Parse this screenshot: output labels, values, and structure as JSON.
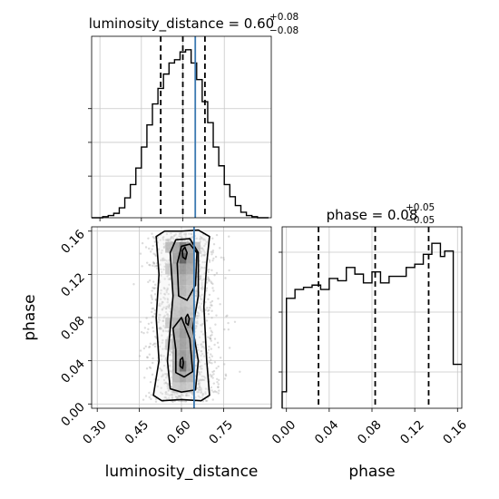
{
  "chart_data": [
    {
      "type": "histogram",
      "panel": "top-left",
      "title_param": "luminosity_distance",
      "title_value": "0.60",
      "title_plus": "+0.08",
      "title_minus": "−0.08",
      "xlim": [
        0.27,
        0.92
      ],
      "bin_edges": [
        0.27,
        0.29,
        0.31,
        0.33,
        0.35,
        0.37,
        0.39,
        0.41,
        0.43,
        0.45,
        0.47,
        0.49,
        0.51,
        0.53,
        0.55,
        0.57,
        0.59,
        0.61,
        0.63,
        0.65,
        0.67,
        0.69,
        0.71,
        0.73,
        0.75,
        0.77,
        0.79,
        0.81,
        0.83,
        0.85,
        0.87,
        0.89,
        0.91
      ],
      "counts": [
        0,
        0,
        1,
        2,
        4,
        9,
        18,
        30,
        45,
        64,
        84,
        103,
        117,
        130,
        140,
        143,
        150,
        152,
        140,
        125,
        105,
        86,
        64,
        47,
        30,
        19,
        11,
        5,
        2,
        1,
        0,
        0
      ],
      "quantile_lines": [
        0.52,
        0.6,
        0.68
      ],
      "truth": 0.645,
      "grid": true,
      "ytick_marks": 3
    },
    {
      "type": "density_2d",
      "panel": "bottom-left",
      "xlabel": "luminosity_distance",
      "ylabel": "phase",
      "xlim": [
        0.28,
        0.92
      ],
      "ylim": [
        -0.004,
        0.164
      ],
      "xticks": [
        0.3,
        0.45,
        0.6,
        0.75
      ],
      "xtick_labels": [
        "0.30",
        "0.45",
        "0.60",
        "0.75"
      ],
      "yticks": [
        0.0,
        0.04,
        0.08,
        0.12,
        0.16
      ],
      "ytick_labels": [
        "0.00",
        "0.04",
        "0.08",
        "0.12",
        "0.16"
      ],
      "x_range_samples": [
        0.43,
        0.82
      ],
      "y_range_samples": [
        0.002,
        0.158
      ],
      "contours": [
        [
          [
            0.5,
            0.008
          ],
          [
            0.53,
            0.003
          ],
          [
            0.6,
            0.004
          ],
          [
            0.67,
            0.003
          ],
          [
            0.7,
            0.008
          ],
          [
            0.69,
            0.04
          ],
          [
            0.68,
            0.09
          ],
          [
            0.69,
            0.13
          ],
          [
            0.7,
            0.155
          ],
          [
            0.66,
            0.161
          ],
          [
            0.6,
            0.16
          ],
          [
            0.54,
            0.16
          ],
          [
            0.51,
            0.155
          ],
          [
            0.52,
            0.12
          ],
          [
            0.51,
            0.08
          ],
          [
            0.52,
            0.04
          ]
        ],
        [
          [
            0.56,
            0.014
          ],
          [
            0.6,
            0.011
          ],
          [
            0.65,
            0.013
          ],
          [
            0.66,
            0.04
          ],
          [
            0.64,
            0.07
          ],
          [
            0.66,
            0.1
          ],
          [
            0.66,
            0.14
          ],
          [
            0.63,
            0.153
          ],
          [
            0.58,
            0.152
          ],
          [
            0.56,
            0.14
          ],
          [
            0.57,
            0.1
          ],
          [
            0.56,
            0.07
          ],
          [
            0.55,
            0.04
          ]
        ],
        [
          [
            0.58,
            0.029
          ],
          [
            0.61,
            0.025
          ],
          [
            0.64,
            0.03
          ],
          [
            0.63,
            0.06
          ],
          [
            0.6,
            0.08
          ],
          [
            0.57,
            0.07
          ],
          [
            0.58,
            0.05
          ]
        ],
        [
          [
            0.59,
            0.1
          ],
          [
            0.62,
            0.096
          ],
          [
            0.65,
            0.11
          ],
          [
            0.655,
            0.14
          ],
          [
            0.63,
            0.148
          ],
          [
            0.6,
            0.146
          ],
          [
            0.585,
            0.13
          ]
        ],
        [
          [
            0.595,
            0.035
          ],
          [
            0.604,
            0.033
          ],
          [
            0.607,
            0.038
          ],
          [
            0.604,
            0.043
          ],
          [
            0.596,
            0.041
          ]
        ],
        [
          [
            0.616,
            0.075
          ],
          [
            0.624,
            0.073
          ],
          [
            0.628,
            0.079
          ],
          [
            0.622,
            0.083
          ],
          [
            0.615,
            0.08
          ]
        ],
        [
          [
            0.605,
            0.136
          ],
          [
            0.615,
            0.134
          ],
          [
            0.62,
            0.14
          ],
          [
            0.612,
            0.145
          ],
          [
            0.603,
            0.142
          ]
        ]
      ],
      "density_cells": [
        [
          0.555,
          0.145,
          0.35
        ],
        [
          0.58,
          0.145,
          0.5
        ],
        [
          0.605,
          0.145,
          0.8
        ],
        [
          0.63,
          0.145,
          0.55
        ],
        [
          0.655,
          0.145,
          0.3
        ],
        [
          0.58,
          0.135,
          0.55
        ],
        [
          0.605,
          0.135,
          1.0
        ],
        [
          0.63,
          0.135,
          0.6
        ],
        [
          0.58,
          0.125,
          0.45
        ],
        [
          0.605,
          0.125,
          0.6
        ],
        [
          0.63,
          0.125,
          0.5
        ],
        [
          0.555,
          0.125,
          0.25
        ],
        [
          0.58,
          0.115,
          0.35
        ],
        [
          0.605,
          0.115,
          0.45
        ],
        [
          0.63,
          0.115,
          0.35
        ],
        [
          0.58,
          0.105,
          0.3
        ],
        [
          0.605,
          0.105,
          0.4
        ],
        [
          0.63,
          0.105,
          0.3
        ],
        [
          0.58,
          0.095,
          0.25
        ],
        [
          0.605,
          0.095,
          0.3
        ],
        [
          0.63,
          0.095,
          0.25
        ],
        [
          0.58,
          0.085,
          0.3
        ],
        [
          0.605,
          0.085,
          0.35
        ],
        [
          0.63,
          0.085,
          0.3
        ],
        [
          0.58,
          0.075,
          0.4
        ],
        [
          0.605,
          0.075,
          0.55
        ],
        [
          0.63,
          0.075,
          0.65
        ],
        [
          0.555,
          0.075,
          0.25
        ],
        [
          0.58,
          0.065,
          0.45
        ],
        [
          0.605,
          0.065,
          0.6
        ],
        [
          0.63,
          0.065,
          0.5
        ],
        [
          0.58,
          0.055,
          0.45
        ],
        [
          0.605,
          0.055,
          0.55
        ],
        [
          0.63,
          0.055,
          0.45
        ],
        [
          0.555,
          0.055,
          0.25
        ],
        [
          0.58,
          0.045,
          0.45
        ],
        [
          0.605,
          0.045,
          0.6
        ],
        [
          0.63,
          0.045,
          0.5
        ],
        [
          0.58,
          0.035,
          0.5
        ],
        [
          0.605,
          0.035,
          0.9
        ],
        [
          0.63,
          0.035,
          0.5
        ],
        [
          0.58,
          0.025,
          0.4
        ],
        [
          0.605,
          0.025,
          0.5
        ],
        [
          0.63,
          0.025,
          0.4
        ],
        [
          0.58,
          0.015,
          0.25
        ],
        [
          0.605,
          0.015,
          0.3
        ],
        [
          0.63,
          0.015,
          0.25
        ]
      ],
      "truth_x": 0.645,
      "grid": true
    },
    {
      "type": "histogram",
      "panel": "bottom-right",
      "title_param": "phase",
      "title_value": "0.08",
      "title_plus": "+0.05",
      "title_minus": "−0.05",
      "xlabel": "phase",
      "xlim": [
        -0.004,
        0.164
      ],
      "xticks": [
        0.0,
        0.04,
        0.08,
        0.12,
        0.16
      ],
      "xtick_labels": [
        "0.00",
        "0.04",
        "0.08",
        "0.12",
        "0.16"
      ],
      "bin_edges": [
        -0.004,
        0.0,
        0.004,
        0.008,
        0.012,
        0.016,
        0.02,
        0.024,
        0.028,
        0.032,
        0.036,
        0.04,
        0.044,
        0.048,
        0.052,
        0.056,
        0.06,
        0.064,
        0.068,
        0.072,
        0.076,
        0.08,
        0.084,
        0.088,
        0.092,
        0.096,
        0.1,
        0.104,
        0.108,
        0.112,
        0.116,
        0.12,
        0.124,
        0.128,
        0.132,
        0.136,
        0.14,
        0.144,
        0.148,
        0.152,
        0.156,
        0.16,
        0.164
      ],
      "counts": [
        15,
        100,
        100,
        108,
        108,
        110,
        110,
        112,
        112,
        108,
        108,
        118,
        118,
        116,
        116,
        128,
        128,
        122,
        122,
        114,
        114,
        124,
        124,
        114,
        114,
        120,
        120,
        120,
        120,
        128,
        128,
        131,
        131,
        140,
        140,
        150,
        150,
        138,
        143,
        143,
        40,
        40
      ],
      "ymax": 165,
      "quantile_lines": [
        0.03,
        0.083,
        0.133
      ],
      "grid": true,
      "ytick_marks": 3
    }
  ]
}
